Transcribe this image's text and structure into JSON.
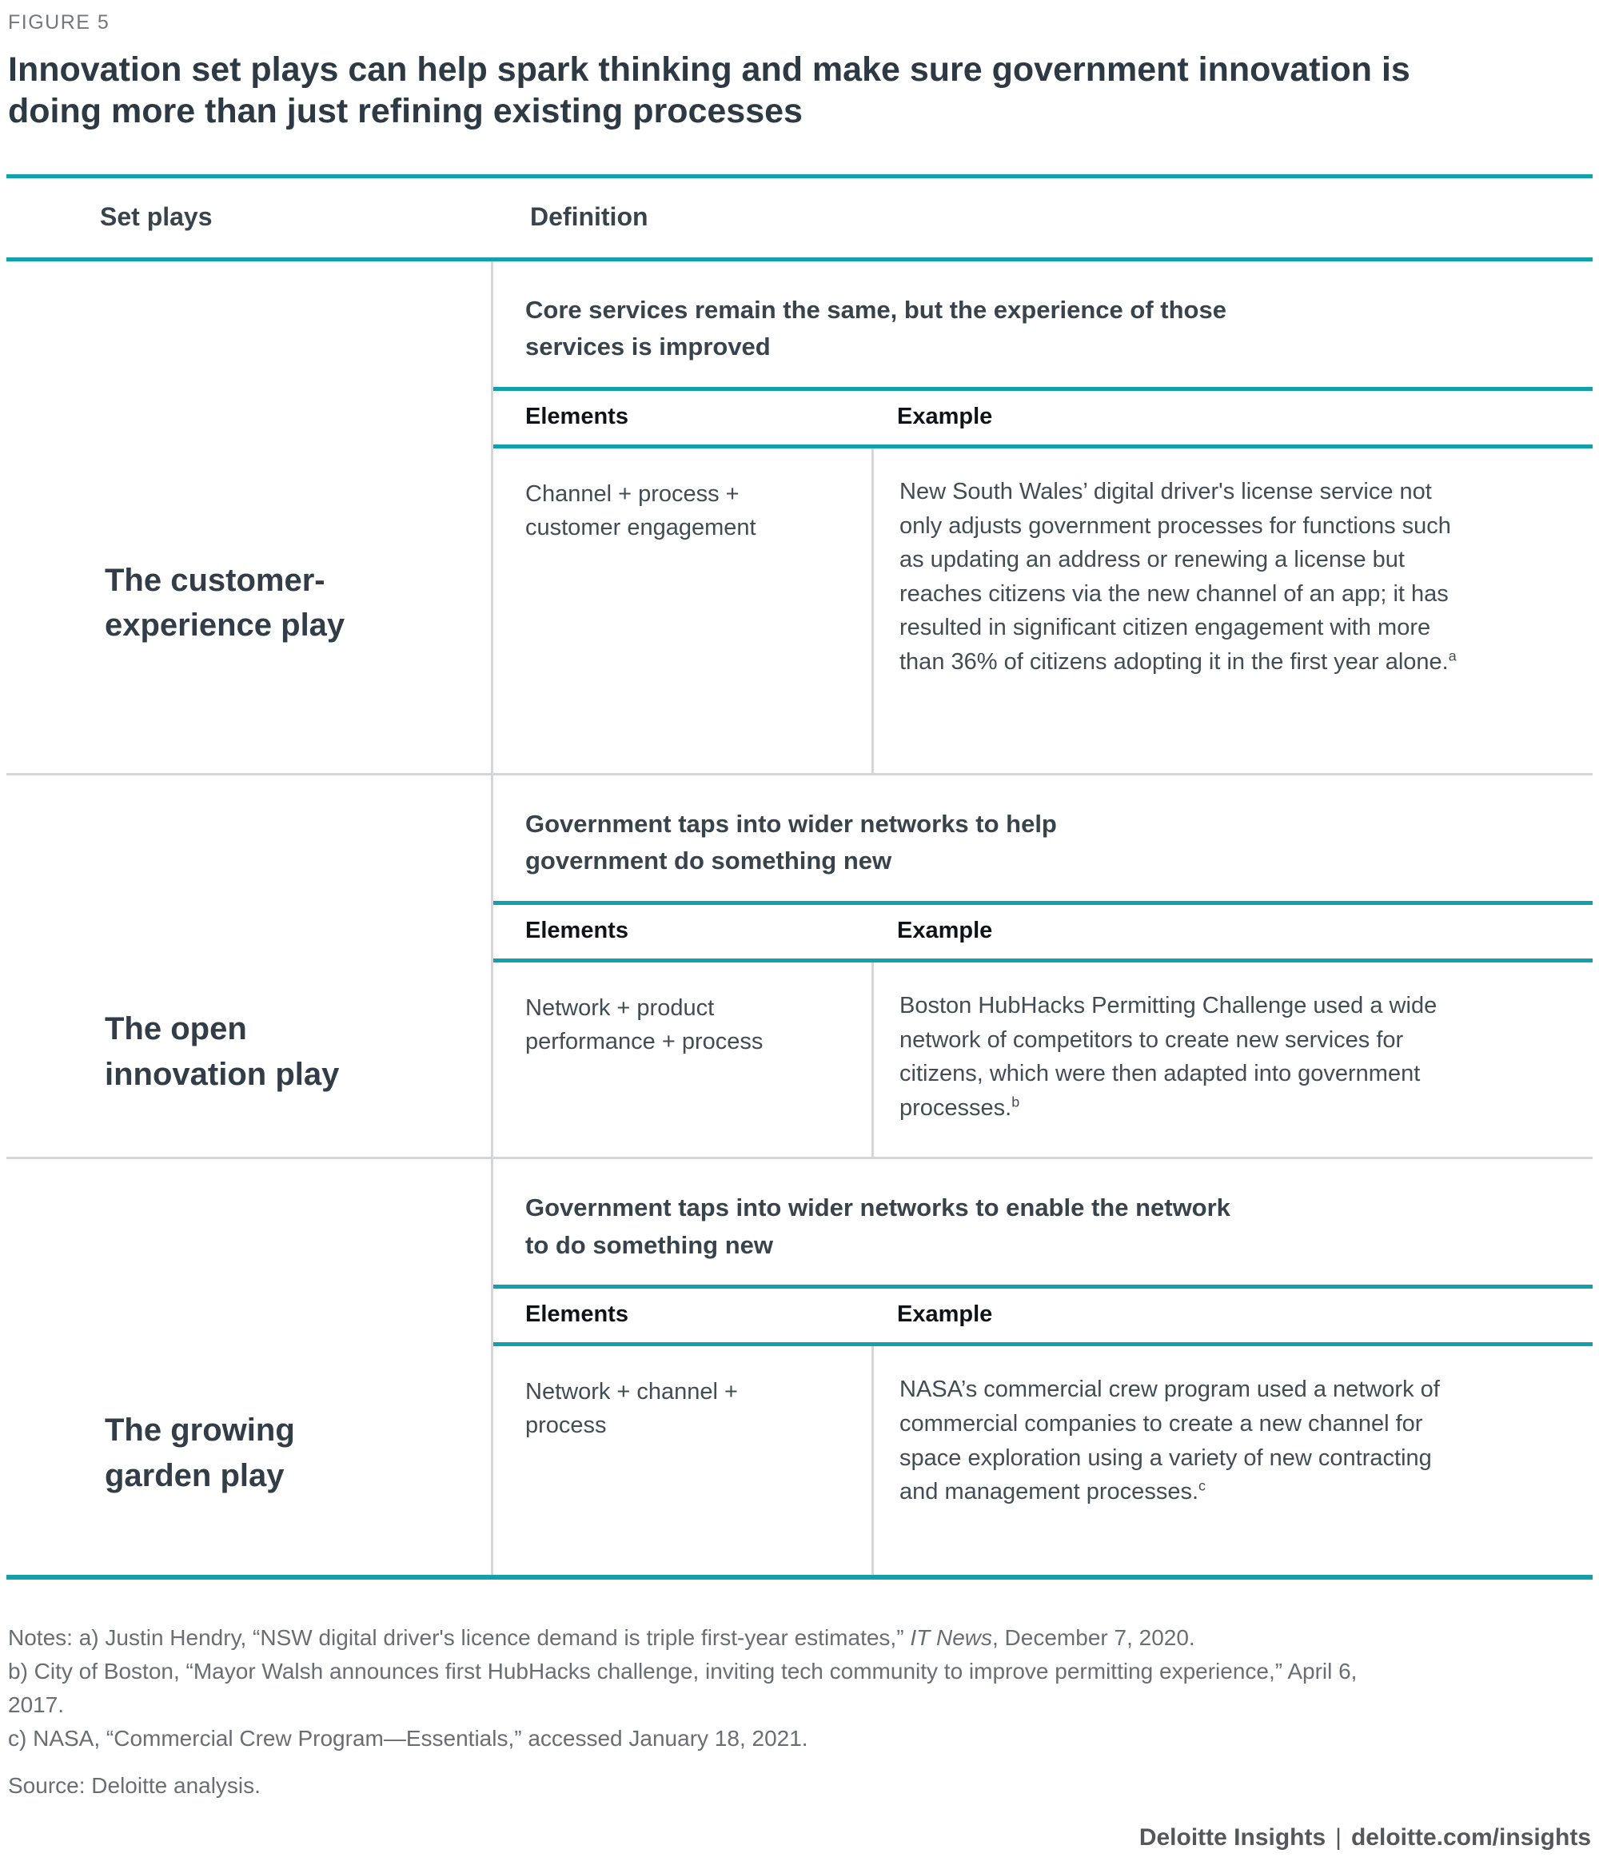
{
  "figure_label": "FIGURE 5",
  "title": "Innovation set plays can help spark thinking and make sure government innovation is doing more than just refining existing processes",
  "table": {
    "col1_header": "Set plays",
    "col2_header": "Definition",
    "sub_headers": {
      "elements": "Elements",
      "example": "Example"
    },
    "rows": [
      {
        "play": "The customer-experience play",
        "definition": "Core services remain the same, but the experience of those services is improved",
        "elements": "Channel + process + customer engagement",
        "example": "New South Wales’ digital driver's license service not only adjusts government processes for functions such as updating an address or renewing a license but reaches citizens via the new channel of an app; it has resulted in significant citizen engagement with more than 36% of citizens adopting it in the first year alone.",
        "example_note_ref": "a"
      },
      {
        "play": "The open innovation play",
        "definition": "Government taps into wider networks to help government do something new",
        "elements": "Network + product performance + process",
        "example": "Boston HubHacks Permitting Challenge used a wide network of competitors to create new services for citizens, which were then adapted into government processes.",
        "example_note_ref": "b"
      },
      {
        "play": "The growing garden play",
        "definition": "Government taps into wider networks to enable the network to do something new",
        "elements": "Network + channel + process",
        "example": "NASA’s commercial crew program used a network of commercial companies to create a new channel for space exploration using a variety of new contracting and management processes.",
        "example_note_ref": "c"
      }
    ]
  },
  "notes": {
    "a_prefix": "Notes: a) Justin Hendry, “NSW digital driver's licence demand is triple first-year estimates,” ",
    "a_italic": "IT News",
    "a_suffix": ", December 7, 2020.",
    "b": "b) City of Boston, “Mayor Walsh announces first HubHacks challenge, inviting tech community to improve permitting experience,” April 6, 2017.",
    "c": "c) NASA, “Commercial Crew Program—Essentials,” accessed January 18, 2021."
  },
  "source": "Source: Deloitte analysis.",
  "footer": {
    "brand": "Deloitte Insights",
    "separator": "|",
    "url": "deloitte.com/insights"
  },
  "colors": {
    "teal_rule": "#11a0ac",
    "divider_gray": "#d4d6d7",
    "title_text": "#2d3943",
    "body_text": "#424c55",
    "notes_text": "#686e73",
    "footer_text": "#54575c"
  }
}
